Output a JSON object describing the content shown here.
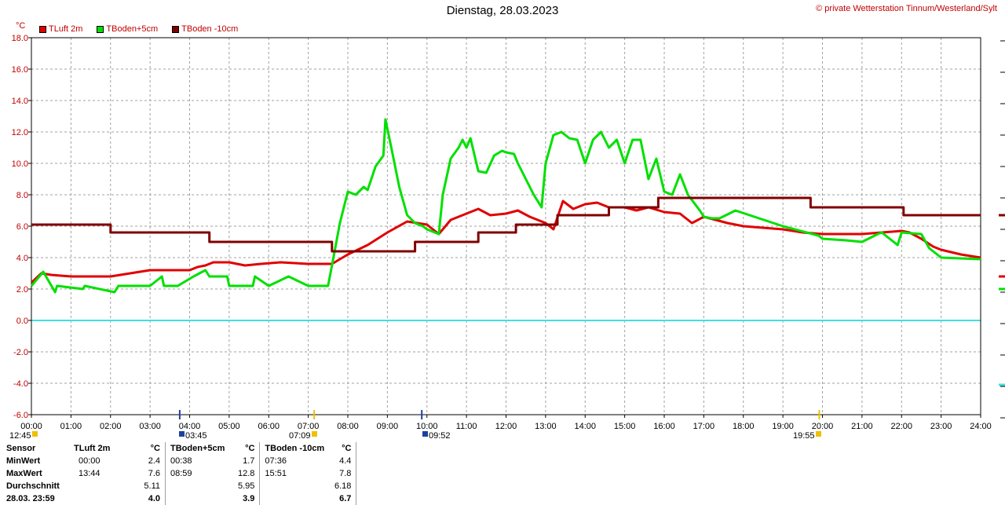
{
  "title": "Dienstag, 28.03.2023",
  "credit": "© private Wetterstation Tinnum/Westerland/Sylt",
  "unit": "°C",
  "colors": {
    "tluft": "#e00000",
    "tboden5": "#00e000",
    "tboden10": "#800000",
    "zero_line": "#40e0e0",
    "grid": "#a0a0a0",
    "axis": "#000000"
  },
  "legend": [
    {
      "label": "TLuft 2m",
      "color": "#e00000"
    },
    {
      "label": "TBoden+5cm",
      "color": "#00e000"
    },
    {
      "label": "TBoden -10cm",
      "color": "#800000"
    }
  ],
  "markers": [
    {
      "label": "12:45",
      "icon": "moon-set-icon"
    },
    {
      "label": "03:45",
      "icon": "moon-rise-icon"
    },
    {
      "label": "07:09",
      "icon": "sunrise-icon"
    },
    {
      "label": "09:52",
      "icon": "moon-icon"
    },
    {
      "label": "19:55",
      "icon": "sunset-icon"
    }
  ],
  "chart_data": {
    "type": "line",
    "title": "Dienstag, 28.03.2023",
    "ylabel": "°C",
    "ylim": [
      -6,
      18
    ],
    "yticks": [
      "18.0",
      "16.0",
      "14.0",
      "12.0",
      "10.0",
      "8.0",
      "6.0",
      "4.0",
      "2.0",
      "0.0",
      "-2.0",
      "-4.0",
      "-6.0"
    ],
    "xlim": [
      0,
      24
    ],
    "xticks": [
      "00:00",
      "01:00",
      "02:00",
      "03:00",
      "04:00",
      "05:00",
      "06:00",
      "07:00",
      "08:00",
      "09:00",
      "10:00",
      "11:00",
      "12:00",
      "13:00",
      "14:00",
      "15:00",
      "16:00",
      "17:00",
      "18:00",
      "19:00",
      "20:00",
      "21:00",
      "22:00",
      "23:00",
      "24:00"
    ],
    "grid": true,
    "legend_position": "top-left",
    "series": [
      {
        "name": "TLuft 2m",
        "x": [
          0,
          0.25,
          0.5,
          1,
          1.5,
          2,
          2.5,
          3,
          3.5,
          4,
          4.2,
          4.4,
          4.6,
          5,
          5.4,
          5.8,
          6.3,
          7,
          7.5,
          7.6,
          8,
          8.5,
          9,
          9.5,
          10,
          10.3,
          10.6,
          11,
          11.3,
          11.6,
          12,
          12.3,
          12.6,
          13,
          13.2,
          13.44,
          13.7,
          14,
          14.3,
          14.6,
          15,
          15.3,
          15.6,
          16,
          16.4,
          16.7,
          17,
          17.3,
          17.6,
          18,
          18.5,
          19,
          19.5,
          20,
          20.5,
          21,
          21.5,
          22,
          22.2,
          22.5,
          22.8,
          23,
          23.5,
          24
        ],
        "y": [
          2.4,
          3.0,
          2.9,
          2.8,
          2.8,
          2.8,
          3.0,
          3.2,
          3.2,
          3.2,
          3.4,
          3.5,
          3.7,
          3.7,
          3.5,
          3.6,
          3.7,
          3.6,
          3.6,
          3.6,
          4.2,
          4.8,
          5.6,
          6.3,
          6.1,
          5.5,
          6.4,
          6.8,
          7.1,
          6.7,
          6.8,
          7.0,
          6.6,
          6.2,
          5.8,
          7.6,
          7.1,
          7.4,
          7.5,
          7.2,
          7.2,
          7.0,
          7.2,
          6.9,
          6.8,
          6.2,
          6.6,
          6.4,
          6.2,
          6.0,
          5.9,
          5.8,
          5.6,
          5.5,
          5.5,
          5.5,
          5.6,
          5.7,
          5.6,
          5.2,
          4.7,
          4.5,
          4.2,
          4.0
        ]
      },
      {
        "name": "TBoden+5cm",
        "x": [
          0,
          0.2,
          0.3,
          0.6,
          0.65,
          1.3,
          1.35,
          2.1,
          2.2,
          2.6,
          3,
          3.3,
          3.35,
          3.7,
          4.1,
          4.4,
          4.5,
          4.95,
          5,
          5.6,
          5.65,
          6,
          6.5,
          7,
          7.5,
          7.6,
          7.8,
          8,
          8.2,
          8.4,
          8.5,
          8.7,
          8.9,
          8.95,
          9.1,
          9.3,
          9.5,
          9.7,
          9.9,
          10,
          10.3,
          10.4,
          10.6,
          10.8,
          10.9,
          11,
          11.1,
          11.3,
          11.5,
          11.7,
          11.9,
          12,
          12.2,
          12.3,
          12.5,
          12.7,
          12.9,
          13,
          13.2,
          13.4,
          13.6,
          13.8,
          14,
          14.2,
          14.4,
          14.6,
          14.8,
          15,
          15.2,
          15.4,
          15.6,
          15.8,
          16,
          16.2,
          16.4,
          16.6,
          16.9,
          17,
          17.2,
          17.4,
          17.8,
          18.4,
          19,
          19.9,
          20,
          20.6,
          21,
          21.4,
          21.5,
          21.9,
          22,
          22.5,
          22.7,
          23,
          24
        ],
        "y": [
          2.2,
          2.8,
          3.1,
          1.8,
          2.2,
          2.0,
          2.2,
          1.8,
          2.2,
          2.2,
          2.2,
          2.8,
          2.2,
          2.2,
          2.8,
          3.2,
          2.8,
          2.8,
          2.2,
          2.2,
          2.8,
          2.2,
          2.8,
          2.2,
          2.2,
          3.5,
          6.2,
          8.2,
          8.0,
          8.5,
          8.3,
          9.8,
          10.5,
          12.8,
          11.0,
          8.5,
          6.7,
          6.2,
          6.0,
          5.8,
          5.5,
          8.0,
          10.3,
          11.0,
          11.5,
          11.0,
          11.6,
          9.5,
          9.4,
          10.5,
          10.8,
          10.7,
          10.6,
          10.0,
          9.0,
          8.0,
          7.2,
          10.0,
          11.8,
          12.0,
          11.6,
          11.5,
          10.0,
          11.5,
          12.0,
          11.0,
          11.5,
          10.0,
          11.5,
          11.5,
          9.0,
          10.3,
          8.2,
          8.0,
          9.3,
          8.0,
          7.0,
          6.6,
          6.5,
          6.5,
          7.0,
          6.5,
          6.0,
          5.4,
          5.2,
          5.1,
          5.0,
          5.5,
          5.6,
          4.8,
          5.6,
          5.5,
          4.6,
          4.0,
          3.9
        ]
      },
      {
        "name": "TBoden -10cm",
        "x": [
          0,
          2,
          2.0,
          4.5,
          4.5,
          7.6,
          7.6,
          9.7,
          9.7,
          11.3,
          11.3,
          12.25,
          12.25,
          13.3,
          13.3,
          14.6,
          14.6,
          15.85,
          15.85,
          19.7,
          19.7,
          22.05,
          22.05,
          24
        ],
        "y": [
          6.1,
          6.1,
          5.6,
          5.6,
          5.0,
          5.0,
          4.4,
          4.4,
          5.0,
          5.0,
          5.6,
          5.6,
          6.1,
          6.1,
          6.7,
          6.7,
          7.2,
          7.2,
          7.8,
          7.8,
          7.2,
          7.2,
          6.7,
          6.7
        ]
      }
    ]
  },
  "stats": {
    "headers": [
      "Sensor",
      "TLuft 2m",
      "°C",
      "TBoden+5cm",
      "°C",
      "TBoden -10cm",
      "°C"
    ],
    "rows": [
      {
        "label": "MinWert",
        "c1t": "00:00",
        "c1v": "2.4",
        "c2t": "00:38",
        "c2v": "1.7",
        "c3t": "07:36",
        "c3v": "4.4"
      },
      {
        "label": "MaxWert",
        "c1t": "13:44",
        "c1v": "7.6",
        "c2t": "08:59",
        "c2v": "12.8",
        "c3t": "15:51",
        "c3v": "7.8"
      },
      {
        "label": "Durchschnitt",
        "c1t": "",
        "c1v": "5.11",
        "c2t": "",
        "c2v": "5.95",
        "c3t": "",
        "c3v": "6.18"
      },
      {
        "label": "28.03. 23:59",
        "c1t": "",
        "c1v": "4.0",
        "c2t": "",
        "c2v": "3.9",
        "c3t": "",
        "c3v": "6.7"
      }
    ]
  }
}
